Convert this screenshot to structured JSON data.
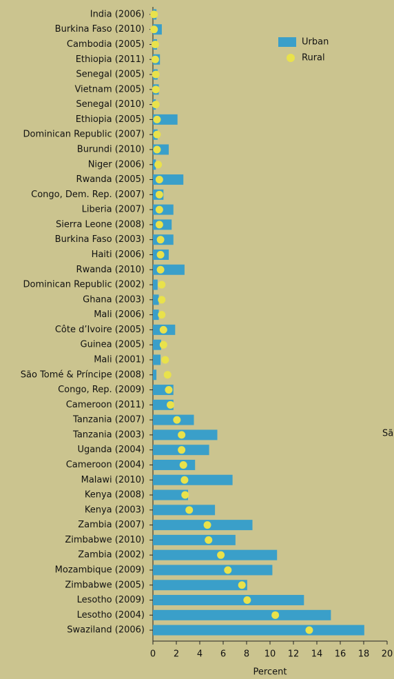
{
  "chart_data": {
    "type": "bar",
    "orientation": "horizontal",
    "categories": [
      "India (2006)",
      "Burkina Faso (2010)",
      "Cambodia (2005)",
      "Ethiopia (2011)",
      "Senegal (2005)",
      "Vietnam (2005)",
      "Senegal (2010)",
      "Ethiopia (2005)",
      "Dominican Republic (2007)",
      "Burundi (2010)",
      "Niger (2006)",
      "Rwanda (2005)",
      "Congo, Dem. Rep. (2007)",
      "Liberia (2007)",
      "Sierra Leone (2008)",
      "Burkina Faso (2003)",
      "Haiti (2006)",
      "Rwanda (2010)",
      "Dominican Republic (2002)",
      "Ghana (2003)",
      "Mali (2006)",
      "Côte d’Ivoire (2005)",
      "Guinea (2005)",
      "Mali (2001)",
      "São Tomé & Príncipe (2008)",
      "Congo, Rep. (2009)",
      "Cameroon (2011)",
      "Tanzania (2007)",
      "Tanzania (2003)",
      "Uganda (2004)",
      "Cameroon (2004)",
      "Malawi (2010)",
      "Kenya (2008)",
      "Kenya (2003)",
      "Zambia (2007)",
      "Zimbabwe (2010)",
      "Zambia (2002)",
      "Mozambique (2009)",
      "Zimbabwe (2005)",
      "Lesotho (2009)",
      "Lesotho (2004)",
      "Swaziland (2006)"
    ],
    "series": [
      {
        "name": "Urban",
        "type": "bar",
        "color": "#3a9fc9",
        "values": [
          0.3,
          0.76,
          0.35,
          0.6,
          0.4,
          0.5,
          0.25,
          2.1,
          0.4,
          1.35,
          0.25,
          2.6,
          0.9,
          1.75,
          1.6,
          1.75,
          1.35,
          2.7,
          0.4,
          0.5,
          0.5,
          1.9,
          0.7,
          0.65,
          0.3,
          1.75,
          1.75,
          3.5,
          5.5,
          4.8,
          3.6,
          6.8,
          3.0,
          5.3,
          8.5,
          7.05,
          10.6,
          10.2,
          8.05,
          12.9,
          15.2,
          18.05
        ]
      },
      {
        "name": "Rural",
        "type": "dot",
        "color": "#e9e24b",
        "values": [
          0.1,
          0.1,
          0.2,
          0.2,
          0.25,
          0.25,
          0.25,
          0.35,
          0.35,
          0.35,
          0.45,
          0.55,
          0.55,
          0.55,
          0.55,
          0.65,
          0.65,
          0.65,
          0.75,
          0.75,
          0.75,
          0.9,
          0.9,
          1.05,
          1.25,
          1.35,
          1.5,
          2.05,
          2.45,
          2.45,
          2.6,
          2.7,
          2.75,
          3.1,
          4.65,
          4.75,
          5.8,
          6.4,
          7.6,
          8.05,
          10.45,
          13.35
        ]
      }
    ],
    "xlabel": "Percent",
    "xlim": [
      0,
      20
    ],
    "xticks": [
      0,
      2,
      4,
      6,
      8,
      10,
      12,
      14,
      16,
      18,
      20
    ],
    "annotation": "Sã",
    "legend": "top-right"
  }
}
